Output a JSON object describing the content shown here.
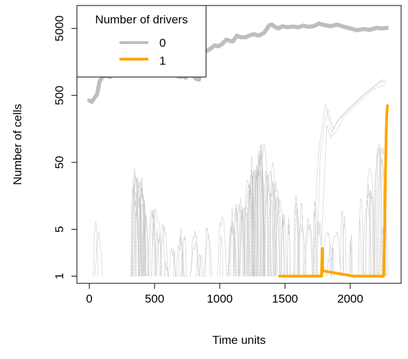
{
  "chart_data": {
    "type": "line",
    "xlabel": "Time units",
    "ylabel": "Number of cells",
    "xlim": [
      -95,
      2390
    ],
    "ylim": [
      0.78,
      11000
    ],
    "log_y": true,
    "x_ticks": [
      0,
      500,
      1000,
      1500,
      2000
    ],
    "y_ticks": [
      1,
      5,
      50,
      500,
      5000
    ],
    "grid": false,
    "legend": {
      "title": "Number of drivers",
      "placement": "top-left",
      "entries": [
        {
          "label": "0",
          "color": "#bebebe"
        },
        {
          "label": "1",
          "color": "#ffa500"
        }
      ]
    },
    "series": [
      {
        "name": "0",
        "color": "#bebebe",
        "points": [
          [
            0,
            420
          ],
          [
            20,
            400
          ],
          [
            40,
            460
          ],
          [
            60,
            520
          ],
          [
            80,
            820
          ],
          [
            100,
            940
          ],
          [
            130,
            1000
          ],
          [
            160,
            940
          ],
          [
            200,
            1070
          ],
          [
            230,
            1080
          ],
          [
            250,
            1000
          ],
          [
            280,
            1100
          ],
          [
            310,
            1180
          ],
          [
            330,
            1150
          ],
          [
            350,
            1200
          ],
          [
            380,
            1160
          ],
          [
            410,
            1220
          ],
          [
            440,
            1100
          ],
          [
            460,
            1230
          ],
          [
            490,
            1280
          ],
          [
            520,
            1250
          ],
          [
            550,
            1210
          ],
          [
            580,
            1180
          ],
          [
            600,
            1050
          ],
          [
            620,
            1150
          ],
          [
            640,
            1260
          ],
          [
            660,
            1200
          ],
          [
            680,
            960
          ],
          [
            700,
            940
          ],
          [
            720,
            960
          ],
          [
            740,
            920
          ],
          [
            760,
            1050
          ],
          [
            780,
            1000
          ],
          [
            800,
            960
          ],
          [
            820,
            880
          ],
          [
            840,
            860
          ],
          [
            860,
            1280
          ],
          [
            880,
            2200
          ],
          [
            900,
            2300
          ],
          [
            930,
            2500
          ],
          [
            960,
            2800
          ],
          [
            990,
            2700
          ],
          [
            1020,
            2950
          ],
          [
            1050,
            3400
          ],
          [
            1080,
            3250
          ],
          [
            1100,
            3200
          ],
          [
            1130,
            3900
          ],
          [
            1160,
            3700
          ],
          [
            1200,
            3700
          ],
          [
            1230,
            3950
          ],
          [
            1260,
            4100
          ],
          [
            1300,
            3900
          ],
          [
            1340,
            4300
          ],
          [
            1380,
            5600
          ],
          [
            1400,
            5700
          ],
          [
            1420,
            5300
          ],
          [
            1450,
            5000
          ],
          [
            1480,
            5400
          ],
          [
            1520,
            5200
          ],
          [
            1560,
            5350
          ],
          [
            1600,
            5200
          ],
          [
            1640,
            5500
          ],
          [
            1680,
            5300
          ],
          [
            1720,
            5400
          ],
          [
            1760,
            5900
          ],
          [
            1800,
            5600
          ],
          [
            1850,
            5400
          ],
          [
            1900,
            5700
          ],
          [
            1950,
            5300
          ],
          [
            2000,
            5000
          ],
          [
            2050,
            4700
          ],
          [
            2100,
            4900
          ],
          [
            2150,
            4750
          ],
          [
            2200,
            5100
          ],
          [
            2240,
            5000
          ],
          [
            2280,
            5100
          ]
        ]
      },
      {
        "name": "1",
        "color": "#ffa500",
        "points": [
          [
            1458,
            1
          ],
          [
            1780,
            1
          ],
          [
            1782,
            1.5
          ],
          [
            1784,
            2.2
          ],
          [
            1786,
            2.6
          ],
          [
            1788,
            1.2
          ],
          [
            2025,
            1
          ],
          [
            2255,
            1
          ],
          [
            2258,
            1.5
          ],
          [
            2261,
            3
          ],
          [
            2264,
            6
          ],
          [
            2267,
            15
          ],
          [
            2270,
            35
          ],
          [
            2273,
            70
          ],
          [
            2276,
            140
          ],
          [
            2279,
            230
          ],
          [
            2282,
            300
          ],
          [
            2285,
            350
          ]
        ]
      }
    ]
  }
}
